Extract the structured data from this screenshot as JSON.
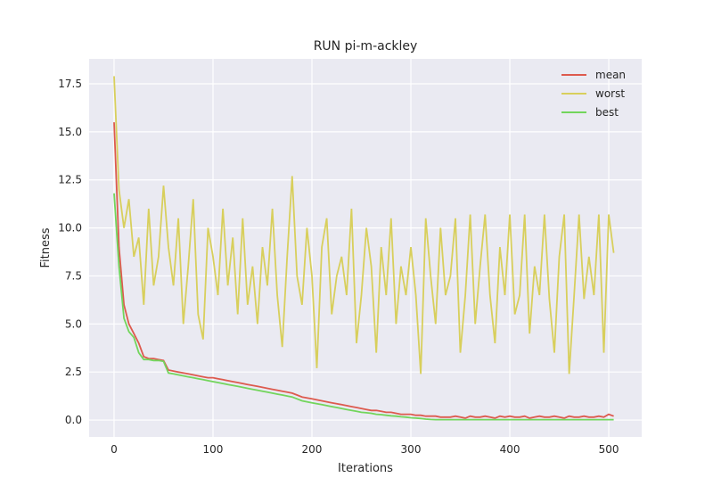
{
  "chart_data": {
    "type": "line",
    "title": "RUN pi-m-ackley",
    "xlabel": "Iterations",
    "ylabel": "Fitness",
    "x": [
      0,
      5,
      10,
      15,
      20,
      25,
      30,
      35,
      40,
      45,
      50,
      55,
      60,
      65,
      70,
      75,
      80,
      85,
      90,
      95,
      100,
      105,
      110,
      115,
      120,
      125,
      130,
      135,
      140,
      145,
      150,
      155,
      160,
      165,
      170,
      175,
      180,
      185,
      190,
      195,
      200,
      205,
      210,
      215,
      220,
      225,
      230,
      235,
      240,
      245,
      250,
      255,
      260,
      265,
      270,
      275,
      280,
      285,
      290,
      295,
      300,
      305,
      310,
      315,
      320,
      325,
      330,
      335,
      340,
      345,
      350,
      355,
      360,
      365,
      370,
      375,
      380,
      385,
      390,
      395,
      400,
      405,
      410,
      415,
      420,
      425,
      430,
      435,
      440,
      445,
      450,
      455,
      460,
      465,
      470,
      475,
      480,
      485,
      490,
      495,
      500,
      505
    ],
    "series": [
      {
        "name": "mean",
        "color": "#dd5a4e",
        "values": [
          15.5,
          9.0,
          6.0,
          5.0,
          4.5,
          4.0,
          3.3,
          3.2,
          3.2,
          3.15,
          3.1,
          2.6,
          2.55,
          2.5,
          2.45,
          2.4,
          2.35,
          2.3,
          2.25,
          2.2,
          2.2,
          2.15,
          2.1,
          2.05,
          2.0,
          1.95,
          1.9,
          1.85,
          1.8,
          1.75,
          1.7,
          1.65,
          1.6,
          1.55,
          1.5,
          1.45,
          1.4,
          1.3,
          1.2,
          1.15,
          1.1,
          1.05,
          1.0,
          0.95,
          0.9,
          0.85,
          0.8,
          0.75,
          0.7,
          0.65,
          0.6,
          0.55,
          0.5,
          0.5,
          0.45,
          0.4,
          0.4,
          0.35,
          0.3,
          0.3,
          0.3,
          0.25,
          0.25,
          0.2,
          0.2,
          0.2,
          0.15,
          0.15,
          0.15,
          0.2,
          0.15,
          0.1,
          0.2,
          0.15,
          0.15,
          0.2,
          0.15,
          0.1,
          0.2,
          0.15,
          0.2,
          0.15,
          0.15,
          0.2,
          0.1,
          0.15,
          0.2,
          0.15,
          0.15,
          0.2,
          0.15,
          0.1,
          0.2,
          0.15,
          0.15,
          0.2,
          0.15,
          0.15,
          0.2,
          0.15,
          0.3,
          0.2
        ]
      },
      {
        "name": "worst",
        "color": "#d8cf5c",
        "values": [
          17.9,
          12,
          10,
          11.5,
          8.5,
          9.5,
          6,
          11,
          7,
          8.5,
          12.2,
          9,
          7,
          10.5,
          5,
          8,
          11.5,
          5.5,
          4.2,
          10,
          8.5,
          6.5,
          11,
          7,
          9.5,
          5.5,
          10.5,
          6,
          8,
          5,
          9,
          7,
          11,
          6.5,
          3.8,
          8.5,
          12.7,
          7.5,
          6,
          10,
          7.5,
          2.7,
          9,
          10.5,
          5.5,
          7.5,
          8.5,
          6.5,
          11,
          4,
          6.5,
          10,
          8,
          3.5,
          9,
          6.5,
          10.5,
          5,
          8,
          6.5,
          9,
          6.5,
          2.4,
          10.5,
          7.5,
          5,
          10,
          6.5,
          7.5,
          10.5,
          3.5,
          6.5,
          10.7,
          5,
          8,
          10.7,
          6.5,
          4,
          9,
          6.5,
          10.7,
          5.5,
          6.5,
          10.7,
          4.5,
          8,
          6.5,
          10.7,
          6.3,
          3.5,
          8.5,
          10.7,
          2.4,
          6.5,
          10.7,
          6.3,
          8.5,
          6.5,
          10.7,
          3.5,
          10.7,
          8.7
        ]
      },
      {
        "name": "best",
        "color": "#72d55c",
        "values": [
          11.8,
          8.0,
          5.3,
          4.6,
          4.3,
          3.5,
          3.15,
          3.15,
          3.1,
          3.1,
          3.05,
          2.45,
          2.4,
          2.35,
          2.3,
          2.25,
          2.2,
          2.15,
          2.1,
          2.05,
          2.0,
          1.95,
          1.9,
          1.85,
          1.8,
          1.75,
          1.7,
          1.65,
          1.6,
          1.55,
          1.5,
          1.45,
          1.4,
          1.35,
          1.3,
          1.25,
          1.2,
          1.1,
          1.0,
          0.95,
          0.9,
          0.85,
          0.8,
          0.75,
          0.7,
          0.65,
          0.6,
          0.55,
          0.5,
          0.45,
          0.4,
          0.38,
          0.35,
          0.3,
          0.28,
          0.25,
          0.22,
          0.2,
          0.17,
          0.15,
          0.12,
          0.1,
          0.08,
          0.05,
          0.03,
          0.02,
          0.02,
          0.02,
          0.02,
          0.02,
          0.02,
          0.02,
          0.02,
          0.02,
          0.02,
          0.02,
          0.02,
          0.02,
          0.02,
          0.02,
          0.02,
          0.02,
          0.02,
          0.02,
          0.02,
          0.02,
          0.02,
          0.02,
          0.02,
          0.02,
          0.02,
          0.02,
          0.02,
          0.02,
          0.02,
          0.02,
          0.02,
          0.02,
          0.02,
          0.02,
          0.02,
          0.02
        ]
      }
    ],
    "xlim": [
      -25.2,
      533.3
    ],
    "ylim": [
      -0.88,
      18.8
    ],
    "xticks": [
      0,
      100,
      200,
      300,
      400,
      500
    ],
    "yticks": [
      {
        "value": 0,
        "label": "0.0"
      },
      {
        "value": 2.5,
        "label": "2.5"
      },
      {
        "value": 5,
        "label": "5.0"
      },
      {
        "value": 7.5,
        "label": "7.5"
      },
      {
        "value": 10,
        "label": "10.0"
      },
      {
        "value": 12.5,
        "label": "12.5"
      },
      {
        "value": 15,
        "label": "15.0"
      },
      {
        "value": 17.5,
        "label": "17.5"
      }
    ],
    "grid": true,
    "legend": "upper right"
  }
}
